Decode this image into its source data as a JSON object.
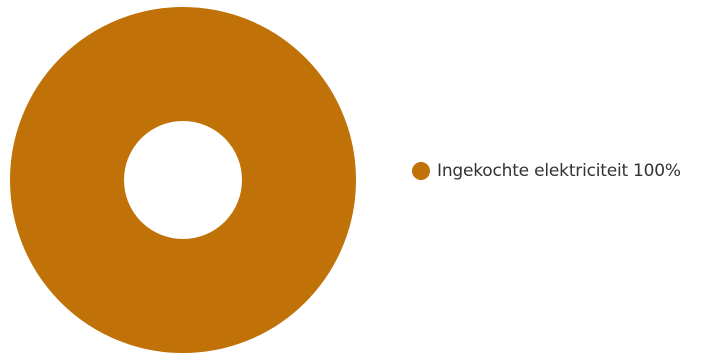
{
  "chart_data": {
    "type": "pie",
    "variant": "donut",
    "categories": [
      "Ingekochte elektriciteit"
    ],
    "values": [
      100
    ],
    "value_labels": [
      "100%"
    ],
    "colors": [
      "#c07208"
    ],
    "legend": "right"
  }
}
